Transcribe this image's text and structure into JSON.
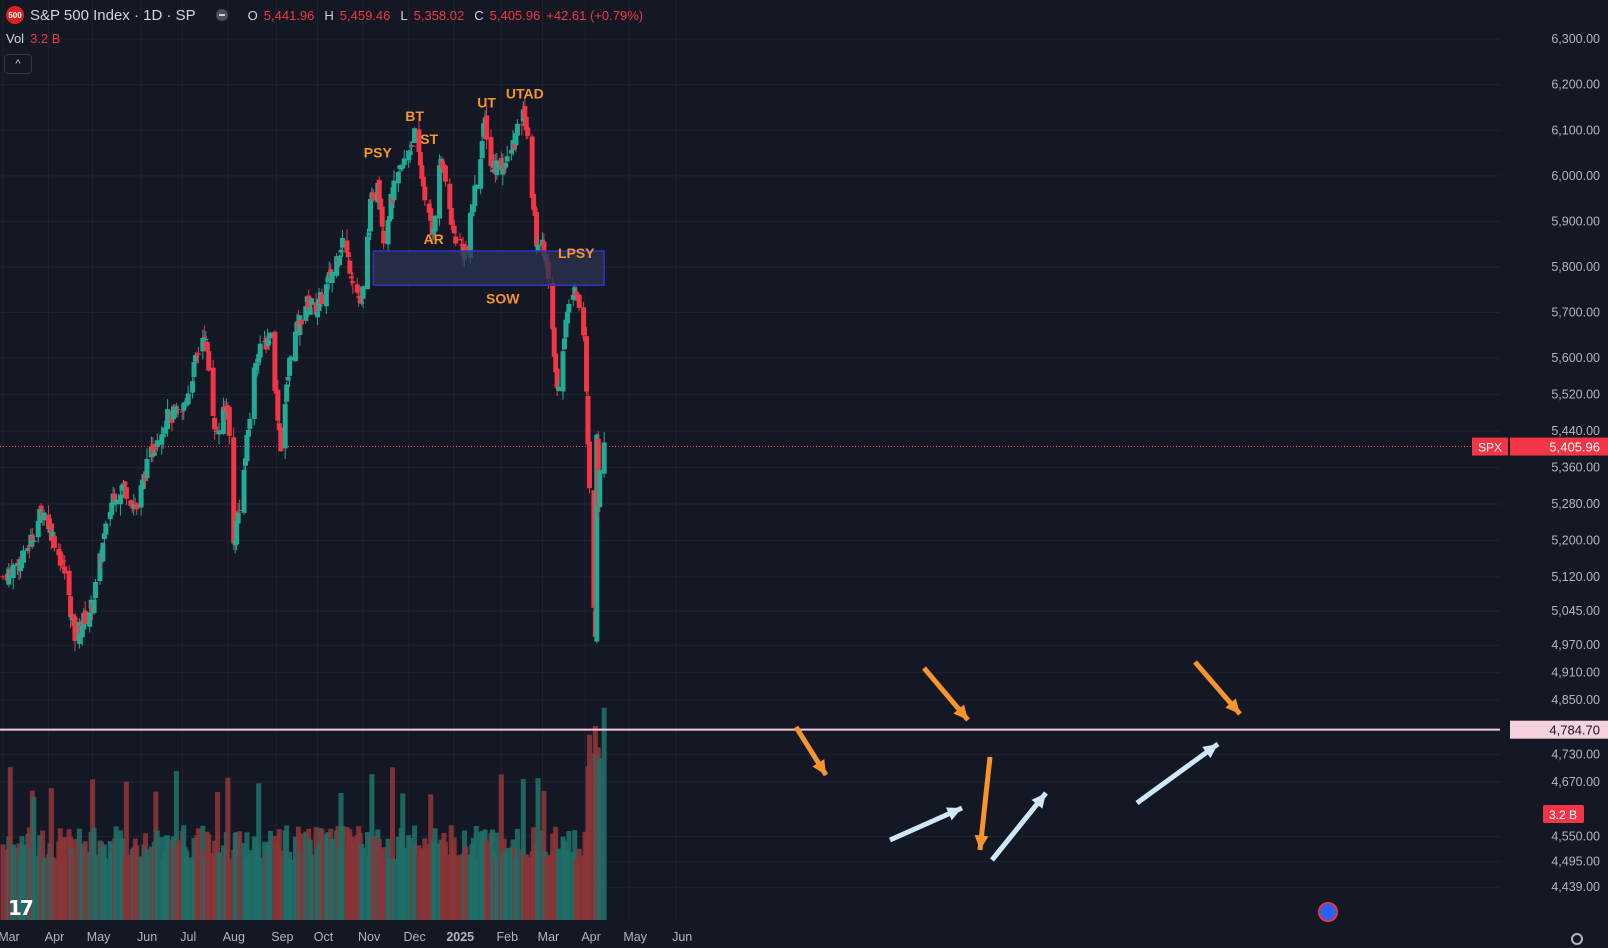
{
  "header": {
    "symbol_badge": "500",
    "title": "S&P 500 Index · 1D · SP",
    "open_label": "O",
    "open": "5,441.96",
    "high_label": "H",
    "high": "5,459.46",
    "low_label": "L",
    "low": "5,358.02",
    "close_label": "C",
    "close": "5,405.96",
    "change": "+42.61 (+0.79%)",
    "vol_label": "Vol",
    "vol_value": "3.2 B",
    "collapse_glyph": "^"
  },
  "colors": {
    "background": "#141824",
    "up": "#22ab94",
    "down": "#f23645",
    "up_volume": "#1f6e67",
    "down_volume": "#8a3537",
    "annotation": "#f5952b",
    "zone_fill": "#2b3350",
    "zone_border": "#2f33c4",
    "support_line": "#f6c6d7",
    "blue_arrow": "#cfe8fb"
  },
  "chart_data": {
    "type": "candlestick",
    "title": "S&P 500 Index · 1D · SP",
    "y_ticks": [
      "6,300.00",
      "6,200.00",
      "6,100.00",
      "6,000.00",
      "5,900.00",
      "5,800.00",
      "5,700.00",
      "5,600.00",
      "5,520.00",
      "5,440.00",
      "5,360.00",
      "5,280.00",
      "5,200.00",
      "5,120.00",
      "5,045.00",
      "4,970.00",
      "4,910.00",
      "4,850.00",
      "4,730.00",
      "4,670.00",
      "4,550.00",
      "4,495.00",
      "4,439.00"
    ],
    "x_ticks": [
      "Mar",
      "Apr",
      "May",
      "Jun",
      "Jul",
      "Aug",
      "Sep",
      "Oct",
      "Nov",
      "Dec",
      "2025",
      "Feb",
      "Mar",
      "Apr",
      "May",
      "Jun"
    ],
    "ylim": [
      4400,
      6320
    ],
    "price_path": [
      {
        "date": "2024-03-01",
        "close": 5120
      },
      {
        "date": "2024-03-15",
        "close": 5160
      },
      {
        "date": "2024-03-28",
        "close": 5270
      },
      {
        "date": "2024-04-04",
        "close": 5210
      },
      {
        "date": "2024-04-12",
        "close": 5130
      },
      {
        "date": "2024-04-19",
        "close": 4990
      },
      {
        "date": "2024-05-01",
        "close": 5060
      },
      {
        "date": "2024-05-08",
        "close": 5190
      },
      {
        "date": "2024-05-15",
        "close": 5300
      },
      {
        "date": "2024-05-22",
        "close": 5320
      },
      {
        "date": "2024-05-31",
        "close": 5270
      },
      {
        "date": "2024-06-06",
        "close": 5350
      },
      {
        "date": "2024-06-14",
        "close": 5430
      },
      {
        "date": "2024-06-21",
        "close": 5470
      },
      {
        "date": "2024-07-01",
        "close": 5480
      },
      {
        "date": "2024-07-10",
        "close": 5590
      },
      {
        "date": "2024-07-16",
        "close": 5660
      },
      {
        "date": "2024-07-24",
        "close": 5430
      },
      {
        "date": "2024-08-01",
        "close": 5500
      },
      {
        "date": "2024-08-05",
        "close": 5190
      },
      {
        "date": "2024-08-12",
        "close": 5350
      },
      {
        "date": "2024-08-20",
        "close": 5600
      },
      {
        "date": "2024-08-30",
        "close": 5650
      },
      {
        "date": "2024-09-06",
        "close": 5410
      },
      {
        "date": "2024-09-13",
        "close": 5620
      },
      {
        "date": "2024-09-23",
        "close": 5720
      },
      {
        "date": "2024-10-01",
        "close": 5710
      },
      {
        "date": "2024-10-10",
        "close": 5780
      },
      {
        "date": "2024-10-18",
        "close": 5860
      },
      {
        "date": "2024-10-31",
        "close": 5710
      },
      {
        "date": "2024-11-06",
        "close": 5930
      },
      {
        "date": "2024-11-11",
        "close": 6000
      },
      {
        "date": "2024-11-15",
        "close": 5870
      },
      {
        "date": "2024-11-22",
        "close": 5970
      },
      {
        "date": "2024-12-06",
        "close": 6090
      },
      {
        "date": "2024-12-18",
        "close": 5870
      },
      {
        "date": "2024-12-24",
        "close": 6040
      },
      {
        "date": "2025-01-02",
        "close": 5870
      },
      {
        "date": "2025-01-10",
        "close": 5830
      },
      {
        "date": "2025-01-17",
        "close": 5990
      },
      {
        "date": "2025-01-23",
        "close": 6120
      },
      {
        "date": "2025-01-27",
        "close": 6020
      },
      {
        "date": "2025-02-07",
        "close": 6030
      },
      {
        "date": "2025-02-19",
        "close": 6140
      },
      {
        "date": "2025-02-27",
        "close": 5860
      },
      {
        "date": "2025-03-05",
        "close": 5840
      },
      {
        "date": "2025-03-13",
        "close": 5530
      },
      {
        "date": "2025-03-19",
        "close": 5680
      },
      {
        "date": "2025-03-25",
        "close": 5770
      },
      {
        "date": "2025-04-01",
        "close": 5630
      },
      {
        "date": "2025-04-03",
        "close": 5400
      },
      {
        "date": "2025-04-07",
        "close": 5060
      },
      {
        "date": "2025-04-08",
        "close": 4990
      },
      {
        "date": "2025-04-09",
        "close": 5450
      },
      {
        "date": "2025-04-10",
        "close": 5270
      },
      {
        "date": "2025-04-11",
        "close": 5363
      },
      {
        "date": "2025-04-14",
        "close": 5405.96
      }
    ],
    "annotations": [
      {
        "label": "PSY",
        "date": "2024-11-11",
        "price": 6040
      },
      {
        "label": "BT",
        "date": "2024-12-06",
        "price": 6120
      },
      {
        "label": "ST",
        "date": "2024-12-16",
        "price": 6070
      },
      {
        "label": "AR",
        "date": "2024-12-19",
        "price": 5850
      },
      {
        "label": "UT",
        "date": "2025-01-24",
        "price": 6150
      },
      {
        "label": "UTAD",
        "date": "2025-02-19",
        "price": 6170
      },
      {
        "label": "SOW",
        "date": "2025-02-04",
        "price": 5720
      },
      {
        "label": "LPSY",
        "date": "2025-03-26",
        "price": 5820
      }
    ],
    "zone": {
      "from": "2024-11-08",
      "to": "2025-04-14",
      "low": 5760,
      "high": 5835
    },
    "price_line": {
      "symbol": "SPX",
      "value": 5405.96,
      "label": "5,405.96"
    },
    "support_line": {
      "value": 4784.7,
      "label": "4,784.70"
    },
    "volume_label": "3.2 B"
  }
}
